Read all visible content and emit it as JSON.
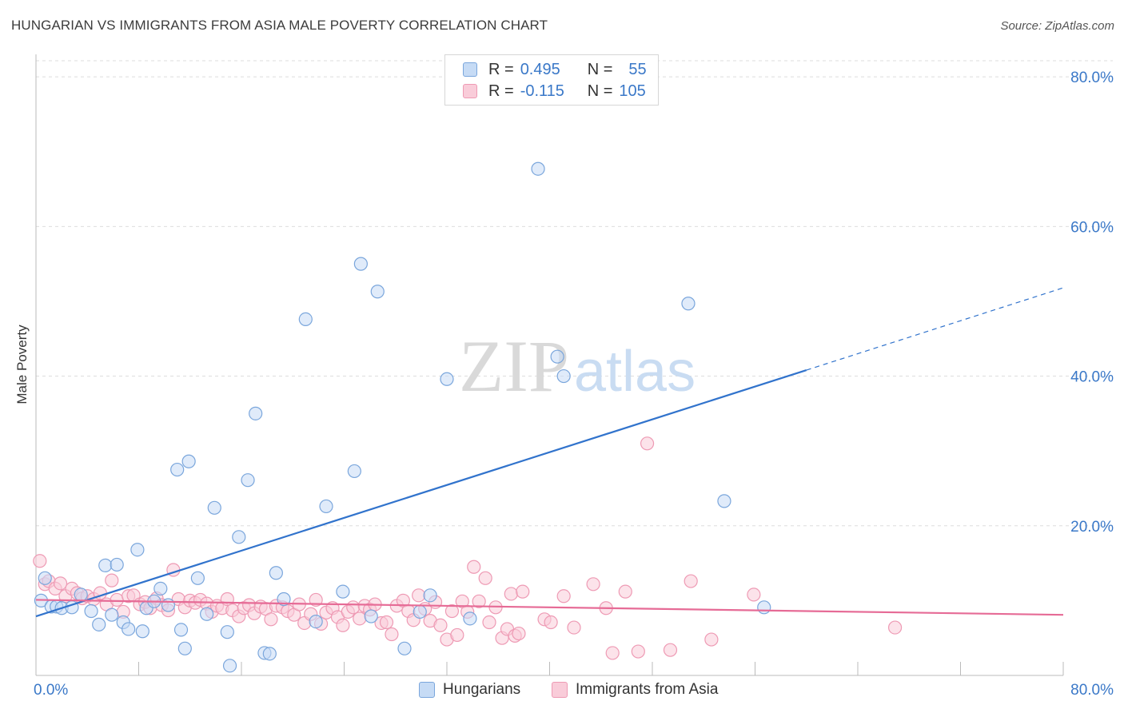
{
  "title": "HUNGARIAN VS IMMIGRANTS FROM ASIA MALE POVERTY CORRELATION CHART",
  "source": "Source: ZipAtlas.com",
  "watermark": {
    "zip": "ZIP",
    "atlas": "atlas"
  },
  "legend": {
    "rows": [
      {
        "r_label": "R =",
        "r_value": "0.495",
        "n_label": "N =",
        "n_value": "55"
      },
      {
        "r_label": "R =",
        "r_value": "-0.115",
        "n_label": "N =",
        "n_value": "105"
      }
    ]
  },
  "colors": {
    "blue_fill": "#c6dbf5",
    "blue_stroke": "#7aa6dc",
    "blue_line": "#3173cc",
    "pink_fill": "#f9ccd9",
    "pink_stroke": "#ee9ab4",
    "pink_line": "#e66b96",
    "tick_label": "#3a78c8",
    "grid": "#dddddd"
  },
  "chart_data": {
    "type": "scatter",
    "title": "HUNGARIAN VS IMMIGRANTS FROM ASIA MALE POVERTY CORRELATION CHART",
    "xlabel": "",
    "ylabel": "Male Poverty",
    "xlim": [
      0,
      80
    ],
    "ylim": [
      0,
      83
    ],
    "x_tick_labels": [
      "0.0%",
      "80.0%"
    ],
    "y_ticks": [
      20,
      40,
      60,
      80
    ],
    "y_tick_labels": [
      "20.0%",
      "40.0%",
      "60.0%",
      "80.0%"
    ],
    "grid": "horizontal dashed",
    "legend_position": "top-center",
    "series": [
      {
        "name": "Hungarians",
        "r": 0.495,
        "n": 55,
        "trend": {
          "x0": 0,
          "y0": 7.9,
          "x1": 60,
          "y1": 40.8,
          "dashed_to_x": 80,
          "dashed_to_y": 51.8
        },
        "points": [
          [
            0.4,
            10.0
          ],
          [
            0.7,
            13.0
          ],
          [
            1.2,
            9.2
          ],
          [
            1.6,
            9.2
          ],
          [
            2.0,
            9.0
          ],
          [
            2.8,
            9.1
          ],
          [
            3.5,
            10.8
          ],
          [
            4.3,
            8.6
          ],
          [
            4.9,
            6.8
          ],
          [
            5.4,
            14.7
          ],
          [
            5.9,
            8.1
          ],
          [
            6.3,
            14.8
          ],
          [
            6.8,
            7.1
          ],
          [
            7.2,
            6.2
          ],
          [
            7.9,
            16.8
          ],
          [
            8.3,
            5.9
          ],
          [
            8.6,
            9.0
          ],
          [
            9.2,
            9.9
          ],
          [
            9.7,
            11.6
          ],
          [
            10.3,
            9.4
          ],
          [
            11.0,
            27.5
          ],
          [
            11.3,
            6.1
          ],
          [
            11.6,
            3.6
          ],
          [
            11.9,
            28.6
          ],
          [
            12.6,
            13.0
          ],
          [
            13.3,
            8.2
          ],
          [
            13.9,
            22.4
          ],
          [
            14.9,
            5.8
          ],
          [
            15.1,
            1.3
          ],
          [
            15.8,
            18.5
          ],
          [
            16.5,
            26.1
          ],
          [
            17.1,
            35.0
          ],
          [
            17.8,
            3.0
          ],
          [
            18.2,
            2.9
          ],
          [
            18.7,
            13.7
          ],
          [
            19.3,
            10.2
          ],
          [
            21.0,
            47.6
          ],
          [
            21.8,
            7.2
          ],
          [
            22.6,
            22.6
          ],
          [
            23.9,
            11.2
          ],
          [
            24.8,
            27.3
          ],
          [
            25.3,
            55.0
          ],
          [
            26.1,
            7.9
          ],
          [
            26.6,
            51.3
          ],
          [
            28.7,
            3.6
          ],
          [
            29.9,
            8.5
          ],
          [
            30.7,
            10.7
          ],
          [
            32.0,
            39.6
          ],
          [
            33.8,
            7.6
          ],
          [
            39.1,
            67.7
          ],
          [
            40.6,
            42.6
          ],
          [
            41.1,
            40.0
          ],
          [
            50.8,
            49.7
          ],
          [
            53.6,
            23.3
          ],
          [
            56.7,
            9.1
          ]
        ]
      },
      {
        "name": "Immigrants from Asia",
        "r": -0.115,
        "n": 105,
        "trend": {
          "x0": 0,
          "y0": 10.1,
          "x1": 80,
          "y1": 8.1
        },
        "points": [
          [
            0.3,
            15.3
          ],
          [
            0.7,
            12.2
          ],
          [
            1.0,
            12.6
          ],
          [
            1.5,
            11.6
          ],
          [
            1.9,
            12.3
          ],
          [
            2.3,
            10.6
          ],
          [
            2.8,
            11.6
          ],
          [
            3.2,
            11.0
          ],
          [
            3.6,
            10.3
          ],
          [
            4.0,
            10.6
          ],
          [
            4.5,
            10.2
          ],
          [
            5.0,
            11.0
          ],
          [
            5.5,
            9.5
          ],
          [
            5.9,
            12.7
          ],
          [
            6.3,
            10.1
          ],
          [
            6.8,
            8.5
          ],
          [
            7.2,
            10.6
          ],
          [
            7.6,
            10.7
          ],
          [
            8.1,
            9.5
          ],
          [
            8.5,
            9.8
          ],
          [
            8.9,
            9.0
          ],
          [
            9.4,
            10.3
          ],
          [
            9.8,
            9.4
          ],
          [
            10.3,
            8.7
          ],
          [
            10.7,
            14.1
          ],
          [
            11.1,
            10.2
          ],
          [
            11.6,
            9.1
          ],
          [
            12.0,
            10.0
          ],
          [
            12.4,
            9.7
          ],
          [
            12.8,
            10.1
          ],
          [
            13.3,
            9.6
          ],
          [
            13.7,
            8.5
          ],
          [
            14.1,
            9.3
          ],
          [
            14.5,
            9.0
          ],
          [
            14.9,
            10.2
          ],
          [
            15.3,
            8.7
          ],
          [
            15.8,
            7.9
          ],
          [
            16.2,
            9.0
          ],
          [
            16.6,
            9.4
          ],
          [
            17.0,
            8.3
          ],
          [
            17.5,
            9.2
          ],
          [
            17.9,
            8.9
          ],
          [
            18.3,
            7.5
          ],
          [
            18.7,
            9.3
          ],
          [
            19.2,
            9.1
          ],
          [
            19.6,
            8.6
          ],
          [
            20.1,
            8.1
          ],
          [
            20.5,
            9.5
          ],
          [
            20.9,
            7.0
          ],
          [
            21.4,
            8.2
          ],
          [
            21.8,
            10.1
          ],
          [
            22.2,
            6.9
          ],
          [
            22.6,
            8.4
          ],
          [
            23.1,
            9.0
          ],
          [
            23.5,
            7.8
          ],
          [
            23.9,
            6.7
          ],
          [
            24.3,
            8.5
          ],
          [
            24.7,
            9.1
          ],
          [
            25.2,
            7.6
          ],
          [
            25.6,
            9.3
          ],
          [
            26.0,
            8.8
          ],
          [
            26.4,
            9.5
          ],
          [
            26.9,
            7.0
          ],
          [
            27.3,
            7.1
          ],
          [
            27.7,
            5.5
          ],
          [
            28.1,
            9.3
          ],
          [
            28.6,
            10.0
          ],
          [
            29.0,
            8.6
          ],
          [
            29.4,
            7.4
          ],
          [
            29.8,
            10.7
          ],
          [
            30.3,
            8.9
          ],
          [
            30.7,
            7.3
          ],
          [
            31.1,
            9.8
          ],
          [
            31.5,
            6.7
          ],
          [
            32.0,
            4.8
          ],
          [
            32.4,
            8.6
          ],
          [
            32.8,
            5.4
          ],
          [
            33.2,
            9.9
          ],
          [
            33.6,
            8.5
          ],
          [
            34.1,
            14.5
          ],
          [
            34.5,
            9.9
          ],
          [
            35.0,
            13.0
          ],
          [
            35.3,
            7.1
          ],
          [
            35.8,
            9.1
          ],
          [
            36.3,
            5.0
          ],
          [
            36.7,
            6.2
          ],
          [
            37.0,
            10.9
          ],
          [
            37.3,
            5.3
          ],
          [
            37.6,
            5.6
          ],
          [
            37.9,
            11.2
          ],
          [
            39.6,
            7.5
          ],
          [
            40.1,
            7.1
          ],
          [
            41.1,
            10.6
          ],
          [
            41.9,
            6.4
          ],
          [
            43.4,
            12.2
          ],
          [
            44.4,
            9.0
          ],
          [
            44.9,
            3.0
          ],
          [
            45.9,
            11.2
          ],
          [
            46.9,
            3.2
          ],
          [
            47.6,
            31.0
          ],
          [
            49.4,
            3.4
          ],
          [
            51.0,
            12.6
          ],
          [
            52.6,
            4.8
          ],
          [
            55.9,
            10.8
          ],
          [
            66.9,
            6.4
          ]
        ]
      }
    ]
  }
}
